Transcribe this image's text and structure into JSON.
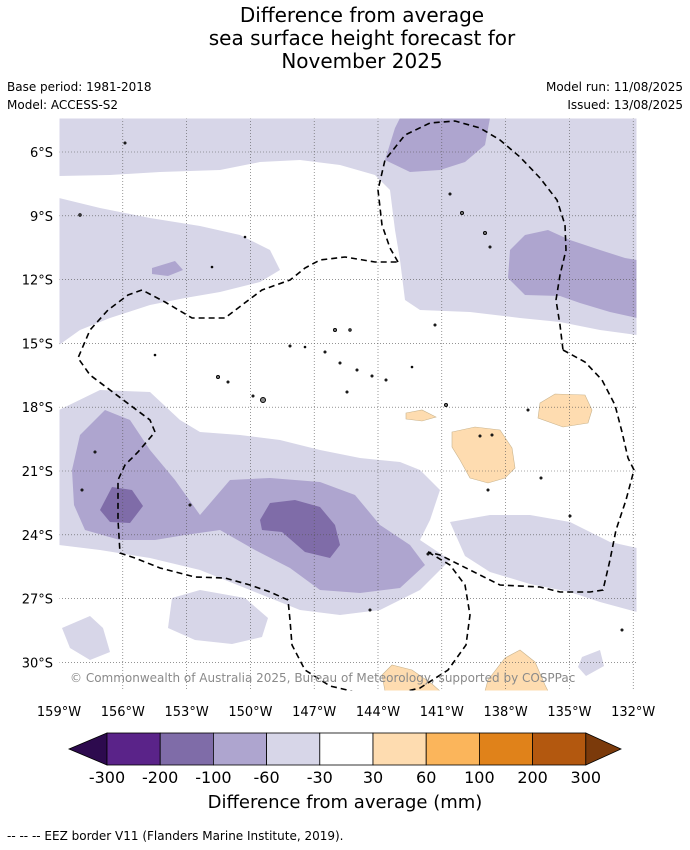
{
  "header": {
    "title_line1": "Difference from average",
    "title_line2": "sea surface height forecast for",
    "title_line3": "November 2025",
    "base_period": "Base period: 1981-2018",
    "model": "Model: ACCESS-S2",
    "model_run": "Model run: 11/08/2025",
    "issued": "Issued: 13/08/2025"
  },
  "map": {
    "lon_labels": [
      "159°W",
      "156°W",
      "153°W",
      "150°W",
      "147°W",
      "144°W",
      "141°W",
      "138°W",
      "135°W",
      "132°W"
    ],
    "lat_labels": [
      "6°S",
      "9°S",
      "12°S",
      "15°S",
      "18°S",
      "21°S",
      "24°S",
      "27°S",
      "30°S"
    ],
    "copyright": "© Commonwealth of Australia 2025, Bureau of Meteorology, supported by COSPPac",
    "grid": true
  },
  "colorbar": {
    "labels": [
      "-300",
      "-200",
      "-100",
      "-60",
      "-30",
      "30",
      "60",
      "100",
      "200",
      "300"
    ],
    "colors": [
      "#2d0a4e",
      "#5a2389",
      "#7f6ca8",
      "#aea5cf",
      "#d7d6e8",
      "#ffffff",
      "#fedcb0",
      "#fbb55b",
      "#e0821a",
      "#b3580f",
      "#7b3a0b"
    ],
    "title": "Difference from average (mm)"
  },
  "footer": {
    "legend": "-- -- -- EEZ border V11 (Flanders Marine Institute, 2019)."
  },
  "colors": {
    "very_light_purple": "#d7d6e8",
    "light_purple": "#aea5cf",
    "medium_purple": "#7f6ca8",
    "light_orange": "#fedcb0"
  }
}
